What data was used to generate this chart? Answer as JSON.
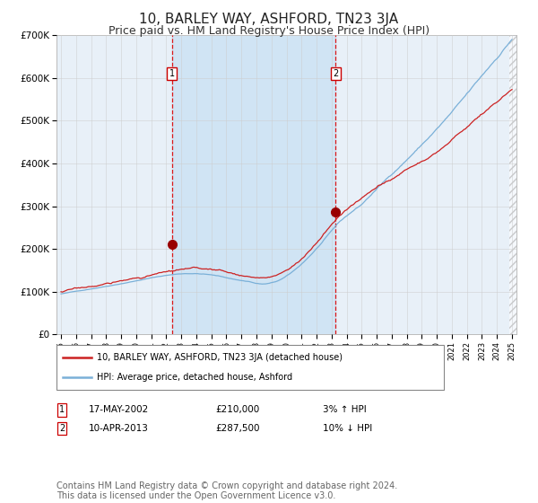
{
  "title": "10, BARLEY WAY, ASHFORD, TN23 3JA",
  "subtitle": "Price paid vs. HM Land Registry's House Price Index (HPI)",
  "title_fontsize": 11,
  "subtitle_fontsize": 9,
  "bg_color": "#ffffff",
  "plot_bg_color": "#e8f0f8",
  "shade_color": "#d0e4f4",
  "grid_color": "#cccccc",
  "year_start": 1995,
  "year_end": 2025,
  "ylim": [
    0,
    700000
  ],
  "yticks": [
    0,
    100000,
    200000,
    300000,
    400000,
    500000,
    600000,
    700000
  ],
  "ytick_labels": [
    "£0",
    "£100K",
    "£200K",
    "£300K",
    "£400K",
    "£500K",
    "£600K",
    "£700K"
  ],
  "hpi_color": "#7ab0d8",
  "price_color": "#cc2222",
  "marker_color": "#990000",
  "sale1_year": 2002.38,
  "sale1_price": 210000,
  "sale2_year": 2013.27,
  "sale2_price": 287500,
  "legend_label1": "10, BARLEY WAY, ASHFORD, TN23 3JA (detached house)",
  "legend_label2": "HPI: Average price, detached house, Ashford",
  "note1_num": "1",
  "note1_date": "17-MAY-2002",
  "note1_price": "£210,000",
  "note1_change": "3% ↑ HPI",
  "note2_num": "2",
  "note2_date": "10-APR-2013",
  "note2_price": "£287,500",
  "note2_change": "10% ↓ HPI",
  "footer": "Contains HM Land Registry data © Crown copyright and database right 2024.\nThis data is licensed under the Open Government Licence v3.0.",
  "footer_fontsize": 7
}
